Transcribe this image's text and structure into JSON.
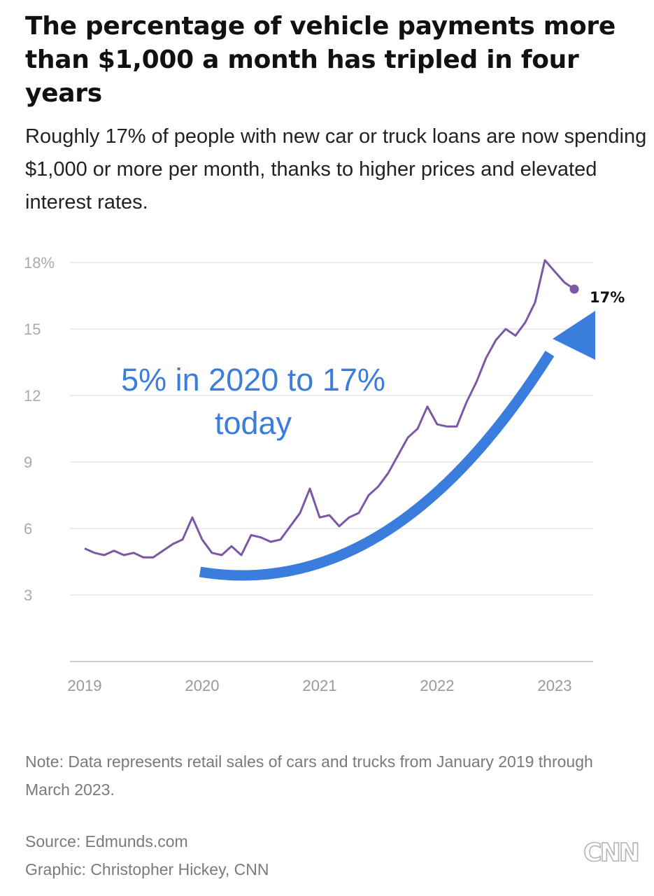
{
  "header": {
    "title": "The percentage of vehicle payments more than $1,000 a month has tripled in four years",
    "subtitle": "Roughly 17% of people with new car or truck loans are now spending $1,000 or more per month, thanks to higher prices and elevated interest rates."
  },
  "footer": {
    "note": "Note: Data represents retail sales of cars and trucks from January 2019 through March 2023.",
    "source": "Source: Edmunds.com",
    "credit": "Graphic: Christopher Hickey, CNN",
    "logo_text": "CNN"
  },
  "colors": {
    "line": "#7b57a6",
    "arrow": "#3b7ddd",
    "grid": "#e6e6e6",
    "axis": "#cccccc"
  },
  "chart_data": {
    "type": "line",
    "title": "The percentage of vehicle payments more than $1,000 a month has tripled in four years",
    "xlabel": "",
    "ylabel": "",
    "ylim": [
      0,
      18
    ],
    "y_ticks": [
      3,
      6,
      9,
      12,
      15,
      18
    ],
    "y_tick_labels": [
      "3",
      "6",
      "9",
      "12",
      "15",
      "18%"
    ],
    "x_tick_labels": [
      "2019",
      "2020",
      "2021",
      "2022",
      "2023"
    ],
    "x_tick_years": [
      2019,
      2020,
      2021,
      2022,
      2023
    ],
    "x": [
      "2019-01",
      "2019-02",
      "2019-03",
      "2019-04",
      "2019-05",
      "2019-06",
      "2019-07",
      "2019-08",
      "2019-09",
      "2019-10",
      "2019-11",
      "2019-12",
      "2020-01",
      "2020-02",
      "2020-03",
      "2020-04",
      "2020-05",
      "2020-06",
      "2020-07",
      "2020-08",
      "2020-09",
      "2020-10",
      "2020-11",
      "2020-12",
      "2021-01",
      "2021-02",
      "2021-03",
      "2021-04",
      "2021-05",
      "2021-06",
      "2021-07",
      "2021-08",
      "2021-09",
      "2021-10",
      "2021-11",
      "2021-12",
      "2022-01",
      "2022-02",
      "2022-03",
      "2022-04",
      "2022-05",
      "2022-06",
      "2022-07",
      "2022-08",
      "2022-09",
      "2022-10",
      "2022-11",
      "2022-12",
      "2023-01",
      "2023-02",
      "2023-03"
    ],
    "values": [
      5.1,
      4.9,
      4.8,
      5.0,
      4.8,
      4.9,
      4.7,
      4.7,
      5.0,
      5.3,
      5.5,
      6.5,
      5.5,
      4.9,
      4.8,
      5.2,
      4.8,
      5.7,
      5.6,
      5.4,
      5.5,
      6.1,
      6.7,
      7.8,
      6.5,
      6.6,
      6.1,
      6.5,
      6.7,
      7.5,
      7.9,
      8.5,
      9.3,
      10.1,
      10.5,
      11.5,
      10.7,
      10.6,
      10.6,
      11.7,
      12.6,
      13.7,
      14.5,
      15.0,
      14.7,
      15.3,
      16.2,
      18.1,
      17.6,
      17.1,
      16.8
    ],
    "end_label": "17%",
    "annotation": [
      "5% in 2020 to 17%",
      "today"
    ]
  }
}
